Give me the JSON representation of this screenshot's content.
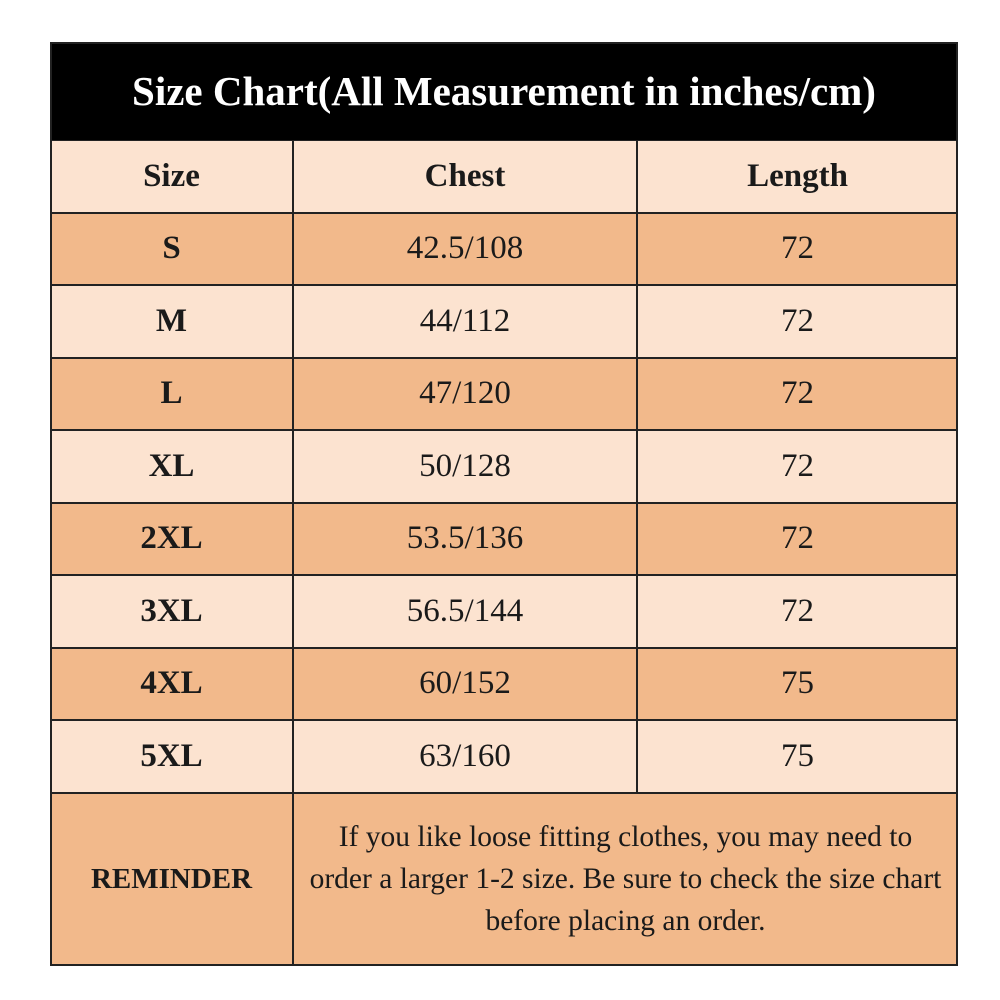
{
  "header": {
    "title": "Size Chart(All Measurement in inches/cm)"
  },
  "table": {
    "columns": [
      "Size",
      "Chest",
      "Length"
    ],
    "rows": [
      [
        "S",
        "42.5/108",
        "72"
      ],
      [
        "M",
        "44/112",
        "72"
      ],
      [
        "L",
        "47/120",
        "72"
      ],
      [
        "XL",
        "50/128",
        "72"
      ],
      [
        "2XL",
        "53.5/136",
        "72"
      ],
      [
        "3XL",
        "56.5/144",
        "72"
      ],
      [
        "4XL",
        "60/152",
        "75"
      ],
      [
        "5XL",
        "63/160",
        "75"
      ]
    ]
  },
  "reminder": {
    "label": "REMINDER",
    "text": "If you like loose fitting clothes, you may need to order a larger 1-2 size. Be sure to check the size chart before placing an order."
  }
}
